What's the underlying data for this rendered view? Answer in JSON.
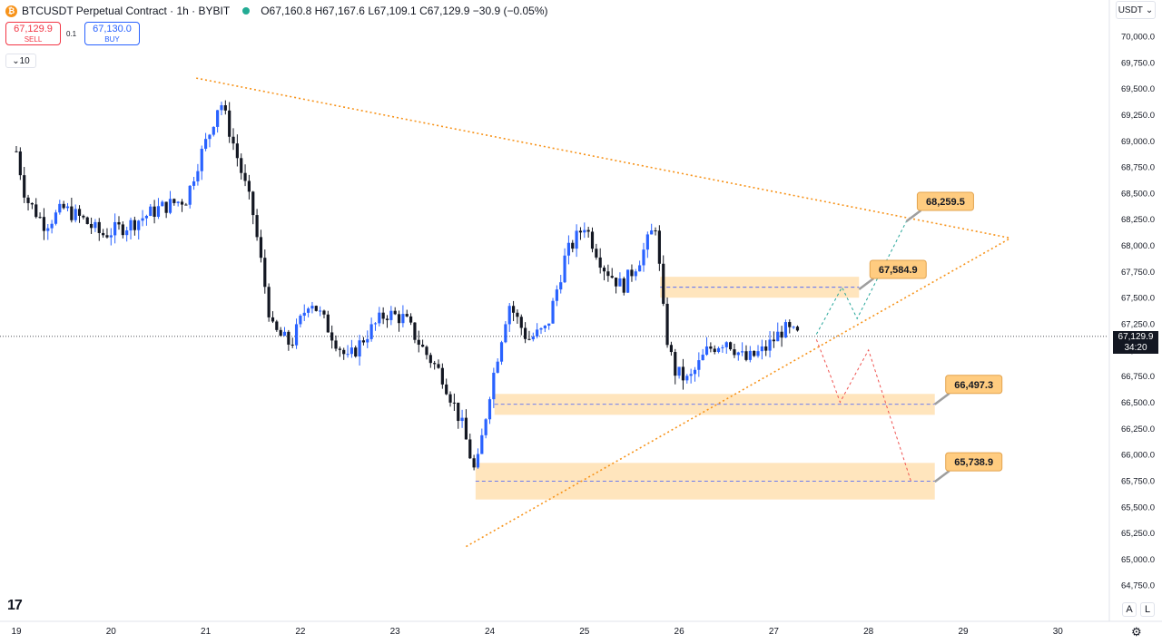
{
  "header": {
    "symbol_title": "BTCUSDT Perpetual Contract · 1h · BYBIT",
    "logo_glyph": "₿",
    "ohlc": {
      "o": "O67,160.8",
      "h": "H67,167.6",
      "l": "L67,109.1",
      "c": "C67,129.9",
      "change": "−30.9 (−0.05%)"
    }
  },
  "trade": {
    "sell_price": "67,129.9",
    "sell_label": "SELL",
    "spread": "0.1",
    "buy_price": "67,130.0",
    "buy_label": "BUY"
  },
  "interval_label": "10",
  "currency_label": "USDT",
  "current_price": {
    "value": "67,129.9",
    "countdown": "34:20"
  },
  "scale_modes": {
    "auto": "A",
    "log": "L"
  },
  "colors": {
    "up": "#2962ff",
    "down": "#131722",
    "resistance": "#f7931a",
    "zone": "#ffe0b2",
    "bull_path": "#26a69a",
    "bear_path": "#ef5350",
    "label_bg": "#ffcc80"
  },
  "chart_data": {
    "type": "candlestick",
    "symbol": "BTCUSDT",
    "timeframe": "1h",
    "ylim": [
      64500,
      70250
    ],
    "y_ticks": [
      "70,000.0",
      "69,750.0",
      "69,500.0",
      "69,250.0",
      "69,000.0",
      "68,750.0",
      "68,500.0",
      "68,250.0",
      "68,000.0",
      "67,750.0",
      "67,500.0",
      "67,250.0",
      "67,000.0",
      "66,750.0",
      "66,500.0",
      "66,250.0",
      "66,000.0",
      "65,750.0",
      "65,500.0",
      "65,250.0",
      "65,000.0",
      "64,750.0"
    ],
    "x_ticks": [
      {
        "label": "19",
        "day": 19
      },
      {
        "label": "20",
        "day": 20
      },
      {
        "label": "21",
        "day": 21
      },
      {
        "label": "22",
        "day": 22
      },
      {
        "label": "23",
        "day": 23
      },
      {
        "label": "24",
        "day": 24
      },
      {
        "label": "25",
        "day": 25
      },
      {
        "label": "26",
        "day": 26
      },
      {
        "label": "27",
        "day": 27
      },
      {
        "label": "28",
        "day": 28
      },
      {
        "label": "29",
        "day": 29
      },
      {
        "label": "30",
        "day": 30
      }
    ],
    "price_path": [
      [
        19.0,
        68900
      ],
      [
        19.1,
        68450
      ],
      [
        19.3,
        68200
      ],
      [
        19.5,
        68350
      ],
      [
        19.7,
        68250
      ],
      [
        19.9,
        68100
      ],
      [
        20.2,
        68200
      ],
      [
        20.5,
        68350
      ],
      [
        20.8,
        68450
      ],
      [
        20.9,
        68750
      ],
      [
        21.05,
        69100
      ],
      [
        21.15,
        69400
      ],
      [
        21.3,
        68950
      ],
      [
        21.5,
        68300
      ],
      [
        21.7,
        67200
      ],
      [
        21.9,
        67050
      ],
      [
        22.1,
        67500
      ],
      [
        22.3,
        67200
      ],
      [
        22.5,
        66900
      ],
      [
        22.7,
        67150
      ],
      [
        22.9,
        67350
      ],
      [
        23.1,
        67300
      ],
      [
        23.3,
        67000
      ],
      [
        23.5,
        66750
      ],
      [
        23.7,
        66300
      ],
      [
        23.85,
        65800
      ],
      [
        24.0,
        66600
      ],
      [
        24.2,
        67450
      ],
      [
        24.4,
        67100
      ],
      [
        24.6,
        67200
      ],
      [
        24.8,
        67900
      ],
      [
        25.0,
        68200
      ],
      [
        25.2,
        67800
      ],
      [
        25.4,
        67600
      ],
      [
        25.6,
        67900
      ],
      [
        25.75,
        68200
      ],
      [
        25.85,
        67200
      ],
      [
        25.95,
        66800
      ],
      [
        26.1,
        66700
      ],
      [
        26.3,
        67000
      ],
      [
        26.5,
        67100
      ],
      [
        26.7,
        66900
      ],
      [
        26.9,
        67000
      ],
      [
        27.1,
        67200
      ],
      [
        27.27,
        67130
      ]
    ],
    "lines": [
      {
        "name": "resistance",
        "from": [
          20.9,
          69600
        ],
        "to": [
          29.5,
          68070
        ]
      },
      {
        "name": "support",
        "from": [
          23.75,
          65120
        ],
        "to": [
          29.5,
          68070
        ]
      }
    ],
    "zones": [
      {
        "from_day": 25.8,
        "to_day": 27.9,
        "low": 67500,
        "high": 67700
      },
      {
        "from_day": 24.05,
        "to_day": 28.7,
        "low": 66380,
        "high": 66580
      },
      {
        "from_day": 23.85,
        "to_day": 28.7,
        "low": 65570,
        "high": 65920
      }
    ],
    "bull_path": [
      [
        27.45,
        67150
      ],
      [
        27.72,
        67600
      ],
      [
        27.88,
        67300
      ],
      [
        28.4,
        68230
      ]
    ],
    "bear_path": [
      [
        27.45,
        67100
      ],
      [
        27.6,
        66750
      ],
      [
        27.7,
        66500
      ],
      [
        28.0,
        67000
      ],
      [
        28.45,
        65740
      ]
    ],
    "price_labels": [
      {
        "text": "68,259.5",
        "at": [
          28.4,
          68230
        ]
      },
      {
        "text": "67,584.9",
        "at": [
          27.9,
          67580
        ]
      },
      {
        "text": "66,497.3",
        "at": [
          28.7,
          66480
        ]
      },
      {
        "text": "65,738.9",
        "at": [
          28.7,
          65740
        ]
      }
    ],
    "current_price_line": 67129.9
  }
}
